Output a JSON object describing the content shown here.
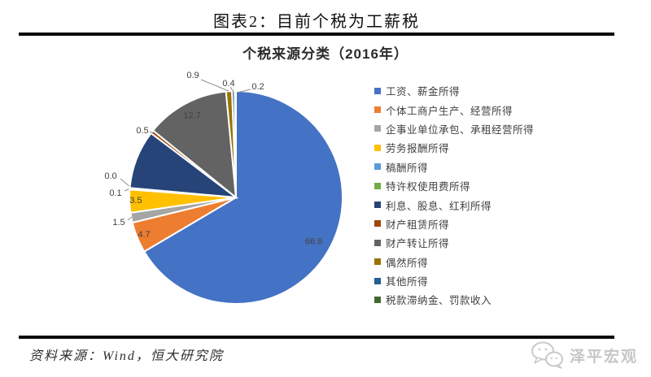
{
  "figure": {
    "title": "图表2：目前个税为工薪税"
  },
  "chart_data": {
    "type": "pie",
    "title": "个税来源分类（2016年）",
    "unit": "percent",
    "start_angle_deg": 0,
    "direction": "clockwise",
    "legend_position": "right",
    "slices": [
      {
        "label": "工资、薪金所得",
        "value": 66.6,
        "color": "#4472C4",
        "data_label": "66.6"
      },
      {
        "label": "个体工商户生产、经营所得",
        "value": 4.7,
        "color": "#ED7D31",
        "data_label": "4.7"
      },
      {
        "label": "企事业单位承包、承租经营所得",
        "value": 1.5,
        "color": "#A5A5A5",
        "data_label": "1.5"
      },
      {
        "label": "劳务报酬所得",
        "value": 3.5,
        "color": "#FFC000",
        "data_label": "3.5"
      },
      {
        "label": "稿酬所得",
        "value": 0.1,
        "color": "#5B9BD5",
        "data_label": "0.1"
      },
      {
        "label": "特许权使用费所得",
        "value": 0.0,
        "color": "#70AD47",
        "data_label": "0.0"
      },
      {
        "label": "利息、股息、红利所得",
        "value": 8.9,
        "color": "#264478",
        "data_label": ""
      },
      {
        "label": "财产租赁所得",
        "value": 0.5,
        "color": "#9E480E",
        "data_label": "0.5"
      },
      {
        "label": "财产转让所得",
        "value": 12.7,
        "color": "#636363",
        "data_label": "12.7"
      },
      {
        "label": "偶然所得",
        "value": 0.9,
        "color": "#997300",
        "data_label": "0.9"
      },
      {
        "label": "其他所得",
        "value": 0.4,
        "color": "#255E91",
        "data_label": "0.4"
      },
      {
        "label": "税款滞纳金、罚款收入",
        "value": 0.2,
        "color": "#43682B",
        "data_label": "0.2"
      }
    ]
  },
  "footer": {
    "source": "资料来源：Wind，恒大研究院"
  },
  "watermark": {
    "text": "泽平宏观"
  }
}
